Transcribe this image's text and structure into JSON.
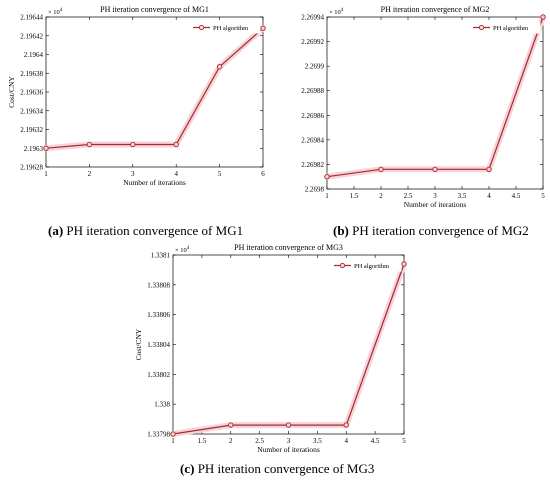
{
  "chart_data": [
    {
      "type": "line",
      "title": "PH iteration convergence of MG1",
      "xlabel": "Number of iterations",
      "ylabel": "Cost/CNY",
      "multiplier_base": "× 10",
      "multiplier_exp": "4",
      "x": [
        1,
        2,
        3,
        4,
        5,
        6
      ],
      "series": [
        {
          "name": "PH algorithm",
          "values": [
            2.1963,
            2.196304,
            2.196304,
            2.196304,
            2.196387,
            2.196428
          ]
        }
      ],
      "xlim": [
        1,
        6
      ],
      "ylim": [
        2.19628,
        2.19644
      ],
      "xticks": [
        "1",
        "2",
        "3",
        "4",
        "5",
        "6"
      ],
      "yticks": [
        "2.19628",
        "2.1963",
        "2.19632",
        "2.19634",
        "2.19636",
        "2.19638",
        "2.1964",
        "2.19642",
        "2.19644"
      ],
      "legend": "top-right",
      "grid": false,
      "caption_label": "(a)",
      "caption_text": " PH iteration convergence of MG1"
    },
    {
      "type": "line",
      "title": "PH iteration convergence of MG2",
      "xlabel": "Number of iterations",
      "ylabel": "",
      "multiplier_base": "× 10",
      "multiplier_exp": "4",
      "x": [
        1,
        2,
        3,
        4,
        5
      ],
      "series": [
        {
          "name": "PH algorithm",
          "values": [
            2.26981,
            2.269816,
            2.269816,
            2.269816,
            2.26994
          ]
        }
      ],
      "xlim": [
        1,
        5
      ],
      "ylim": [
        2.2698,
        2.26994
      ],
      "xticks": [
        "1",
        "1.5",
        "2",
        "2.5",
        "3",
        "3.5",
        "4",
        "4.5",
        "5"
      ],
      "yticks": [
        "2.2698",
        "2.26982",
        "2.26984",
        "2.26986",
        "2.26988",
        "2.2699",
        "2.26992",
        "2.26994"
      ],
      "legend": "top-right",
      "grid": false,
      "caption_label": "(b)",
      "caption_text": " PH iteration convergence of MG2"
    },
    {
      "type": "line",
      "title": "PH iteration convergence of MG3",
      "xlabel": "Number of iterations",
      "ylabel": "Cost/CNY",
      "multiplier_base": "× 10",
      "multiplier_exp": "4",
      "x": [
        1,
        2,
        3,
        4,
        5
      ],
      "series": [
        {
          "name": "PH algorithm",
          "values": [
            1.33798,
            1.337986,
            1.337986,
            1.337986,
            1.338094
          ]
        }
      ],
      "xlim": [
        1,
        5
      ],
      "ylim": [
        1.33798,
        1.3381
      ],
      "xticks": [
        "1",
        "1.5",
        "2",
        "2.5",
        "3",
        "3.5",
        "4",
        "4.5",
        "5"
      ],
      "yticks": [
        "1.33798",
        "1.338",
        "1.33802",
        "1.33804",
        "1.33806",
        "1.33808",
        "1.3381"
      ],
      "legend": "top-right",
      "grid": false,
      "caption_label": "(c)",
      "caption_text": " PH iteration convergence of MG3"
    }
  ],
  "colors": {
    "series_line": "#a52a2a",
    "series_shadow": "#f6d3d8",
    "axis": "#000000"
  }
}
